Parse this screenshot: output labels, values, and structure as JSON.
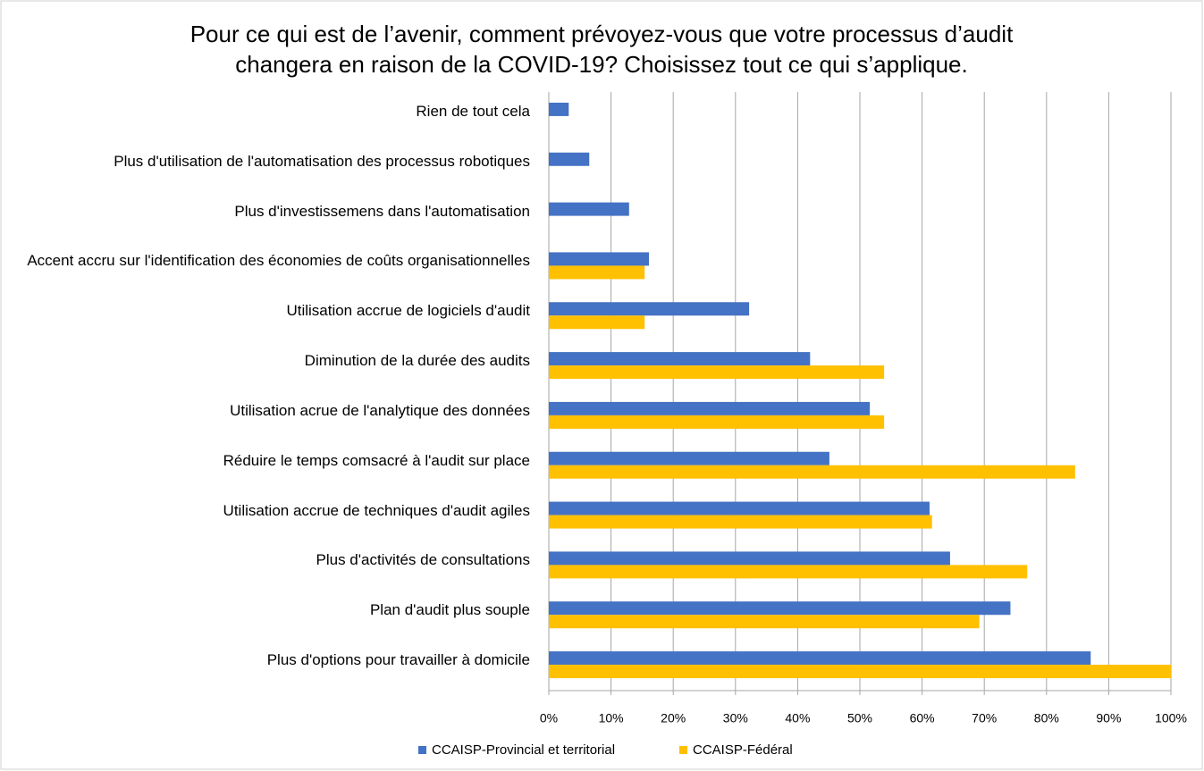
{
  "chart_data": {
    "type": "hbar",
    "title": [
      "Pour ce qui est de l’avenir, comment prévoyez-vous que votre processus d’audit",
      "changera en raison de la COVID-19? Choisissez tout ce qui s’applique."
    ],
    "categories": [
      "Rien de tout cela",
      "Plus d'utilisation de l'automatisation des processus robotiques",
      "Plus d'investissemens dans l'automatisation",
      "Accent accru sur l'identification des économies de coûts organisationnelles",
      "Utilisation accrue de logiciels d'audit",
      "Diminution de la durée des audits",
      "Utilisation acrue de l'analytique des données",
      "Réduire le temps comsacré à l'audit sur place",
      "Utilisation accrue de techniques d'audit agiles",
      "Plus d'activités de consultations",
      "Plan d'audit plus souple",
      "Plus d'options pour travailler à domicile"
    ],
    "series": [
      {
        "name": "CCAISP-Provincial et territorial",
        "color": "#4472c4",
        "values": [
          3.2,
          6.5,
          12.9,
          16.1,
          32.2,
          42,
          51.6,
          45.1,
          61.2,
          64.5,
          74.2,
          87.1
        ]
      },
      {
        "name": "CCAISP-Fédéral",
        "color": "#ffc000",
        "values": [
          0,
          0,
          0,
          15.4,
          15.4,
          53.9,
          53.9,
          84.6,
          61.6,
          76.9,
          69.2,
          100
        ]
      }
    ],
    "xlim": [
      0,
      100
    ],
    "xticks": [
      {
        "value": 0,
        "label": "0%"
      },
      {
        "value": 10,
        "label": "10%"
      },
      {
        "value": 20,
        "label": "20%"
      },
      {
        "value": 30,
        "label": "30%"
      },
      {
        "value": 40,
        "label": "40%"
      },
      {
        "value": 50,
        "label": "50%"
      },
      {
        "value": 60,
        "label": "60%"
      },
      {
        "value": 70,
        "label": "70%"
      },
      {
        "value": 80,
        "label": "80%"
      },
      {
        "value": 90,
        "label": "90%"
      },
      {
        "value": 100,
        "label": "100%"
      }
    ],
    "grid": true,
    "legend": "bottom"
  }
}
